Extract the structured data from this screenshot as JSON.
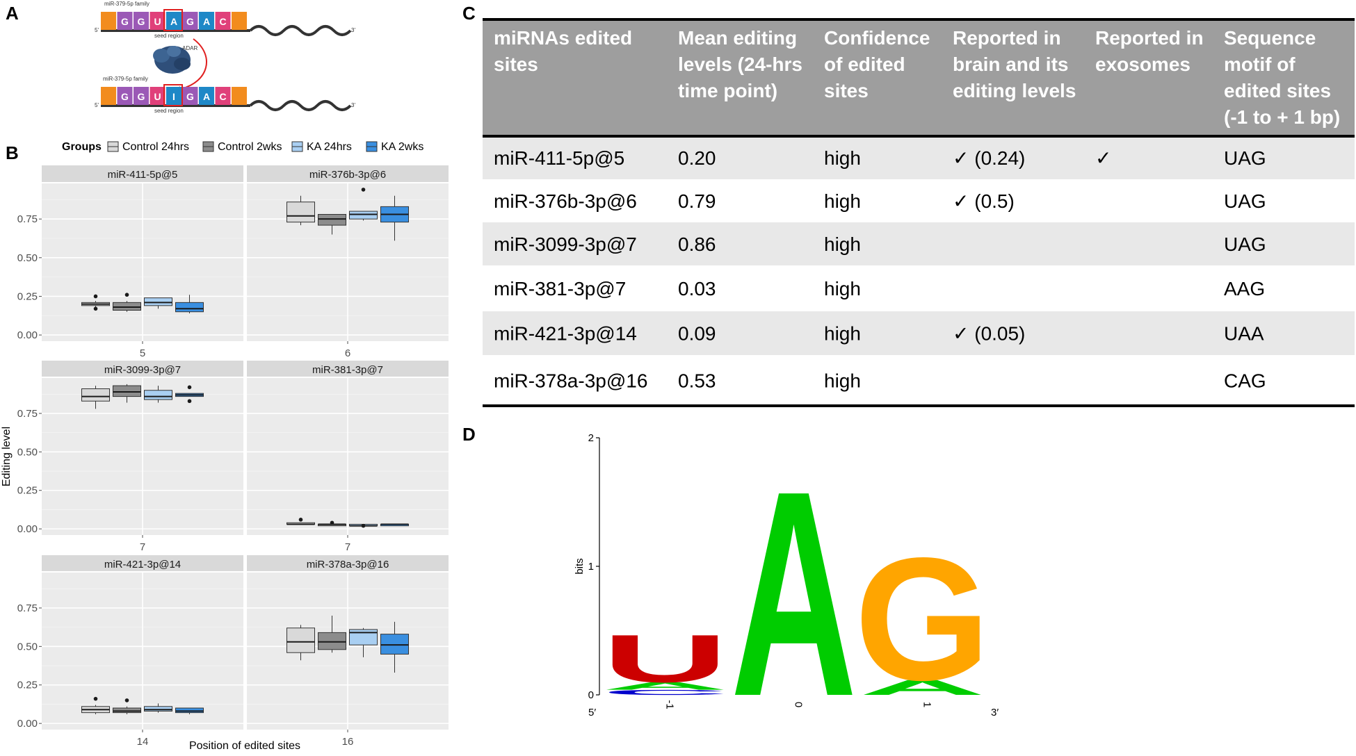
{
  "panels": {
    "A": "A",
    "B": "B",
    "C": "C",
    "D": "D"
  },
  "schematic": {
    "family_label": "miR-379-5p family",
    "adar_label": "ADAR",
    "seed_label": "seed region",
    "five_prime": "5'",
    "three_prime": "3'",
    "top_letters": [
      "",
      "G",
      "G",
      "U",
      "A",
      "G",
      "A",
      "C",
      ""
    ],
    "bottom_letters": [
      "",
      "G",
      "G",
      "U",
      "I",
      "G",
      "A",
      "C",
      ""
    ],
    "letter_colors": [
      "#f28c1e",
      "#9b59b6",
      "#9b59b6",
      "#e0407a",
      "#1e88c7",
      "#9b59b6",
      "#1e88c7",
      "#e0407a",
      "#f28c1e"
    ]
  },
  "chart_data": {
    "type": "box",
    "legend_title": "Groups",
    "legend_position": "top",
    "groups": [
      "Control 24hrs",
      "Control 2wks",
      "KA 24hrs",
      "KA 2wks"
    ],
    "group_colors": [
      "#d9d9d9",
      "#8c8c8c",
      "#a9cff2",
      "#3a8fe0"
    ],
    "xlabel": "Position of edited sites",
    "ylabel": "Editing level",
    "yticks": [
      0.0,
      0.25,
      0.5,
      0.75
    ],
    "ytick_labels": [
      "0.00",
      "0.25",
      "0.50",
      "0.75"
    ],
    "ylim": [
      -0.04,
      0.98
    ],
    "facets": [
      {
        "title": "miR-411-5p@5",
        "x_label": "5",
        "boxes": [
          {
            "min": 0.18,
            "q1": 0.19,
            "median": 0.2,
            "q3": 0.21,
            "max": 0.22,
            "outliers": [
              0.25,
              0.17
            ]
          },
          {
            "min": 0.15,
            "q1": 0.16,
            "median": 0.18,
            "q3": 0.21,
            "max": 0.22,
            "outliers": [
              0.26
            ]
          },
          {
            "min": 0.17,
            "q1": 0.19,
            "median": 0.21,
            "q3": 0.24,
            "max": 0.24,
            "outliers": []
          },
          {
            "min": 0.14,
            "q1": 0.15,
            "median": 0.17,
            "q3": 0.21,
            "max": 0.26,
            "outliers": []
          }
        ]
      },
      {
        "title": "miR-376b-3p@6",
        "x_label": "6",
        "boxes": [
          {
            "min": 0.71,
            "q1": 0.73,
            "median": 0.77,
            "q3": 0.86,
            "max": 0.9,
            "outliers": []
          },
          {
            "min": 0.65,
            "q1": 0.71,
            "median": 0.75,
            "q3": 0.78,
            "max": 0.78,
            "outliers": []
          },
          {
            "min": 0.74,
            "q1": 0.75,
            "median": 0.78,
            "q3": 0.8,
            "max": 0.8,
            "outliers": [
              0.94
            ]
          },
          {
            "min": 0.61,
            "q1": 0.73,
            "median": 0.78,
            "q3": 0.83,
            "max": 0.9,
            "outliers": []
          }
        ]
      },
      {
        "title": "miR-3099-3p@7",
        "x_label": "7",
        "boxes": [
          {
            "min": 0.78,
            "q1": 0.83,
            "median": 0.86,
            "q3": 0.91,
            "max": 0.93,
            "outliers": []
          },
          {
            "min": 0.82,
            "q1": 0.86,
            "median": 0.89,
            "q3": 0.93,
            "max": 0.94,
            "outliers": []
          },
          {
            "min": 0.82,
            "q1": 0.84,
            "median": 0.86,
            "q3": 0.9,
            "max": 0.93,
            "outliers": []
          },
          {
            "min": 0.86,
            "q1": 0.86,
            "median": 0.87,
            "q3": 0.88,
            "max": 0.88,
            "outliers": [
              0.92,
              0.83
            ]
          }
        ]
      },
      {
        "title": "miR-381-3p@7",
        "x_label": "7",
        "boxes": [
          {
            "min": 0.03,
            "q1": 0.03,
            "median": 0.03,
            "q3": 0.04,
            "max": 0.04,
            "outliers": [
              0.06
            ]
          },
          {
            "min": 0.02,
            "q1": 0.02,
            "median": 0.03,
            "q3": 0.03,
            "max": 0.03,
            "outliers": [
              0.04
            ]
          },
          {
            "min": 0.02,
            "q1": 0.02,
            "median": 0.02,
            "q3": 0.03,
            "max": 0.03,
            "outliers": [
              0.02
            ]
          },
          {
            "min": 0.02,
            "q1": 0.02,
            "median": 0.03,
            "q3": 0.03,
            "max": 0.03,
            "outliers": []
          }
        ]
      },
      {
        "title": "miR-421-3p@14",
        "x_label": "14",
        "boxes": [
          {
            "min": 0.06,
            "q1": 0.07,
            "median": 0.09,
            "q3": 0.11,
            "max": 0.12,
            "outliers": [
              0.16
            ]
          },
          {
            "min": 0.06,
            "q1": 0.07,
            "median": 0.08,
            "q3": 0.1,
            "max": 0.11,
            "outliers": [
              0.15
            ]
          },
          {
            "min": 0.07,
            "q1": 0.08,
            "median": 0.09,
            "q3": 0.11,
            "max": 0.13,
            "outliers": []
          },
          {
            "min": 0.06,
            "q1": 0.07,
            "median": 0.08,
            "q3": 0.1,
            "max": 0.1,
            "outliers": []
          }
        ]
      },
      {
        "title": "miR-378a-3p@16",
        "x_label": "16",
        "boxes": [
          {
            "min": 0.41,
            "q1": 0.46,
            "median": 0.53,
            "q3": 0.62,
            "max": 0.64,
            "outliers": []
          },
          {
            "min": 0.46,
            "q1": 0.48,
            "median": 0.53,
            "q3": 0.59,
            "max": 0.7,
            "outliers": []
          },
          {
            "min": 0.43,
            "q1": 0.51,
            "median": 0.59,
            "q3": 0.61,
            "max": 0.62,
            "outliers": []
          },
          {
            "min": 0.33,
            "q1": 0.45,
            "median": 0.51,
            "q3": 0.58,
            "max": 0.66,
            "outliers": []
          }
        ]
      }
    ]
  },
  "table": {
    "headers": [
      [
        "miRNAs edited",
        "sites"
      ],
      [
        "Mean editing",
        "levels (24-hrs",
        "time point)"
      ],
      [
        "Confidence",
        "of edited",
        "sites"
      ],
      [
        "Reported in",
        "brain and its",
        "editing levels"
      ],
      [
        "Reported in",
        "exosomes"
      ],
      [
        "Sequence",
        "motif of",
        "edited sites",
        "(-1 to + 1 bp)"
      ]
    ],
    "rows": [
      [
        "miR-411-5p@5",
        "0.20",
        "high",
        "✓ (0.24)",
        "✓",
        "UAG"
      ],
      [
        "miR-376b-3p@6",
        "0.79",
        "high",
        "✓ (0.5)",
        "",
        "UAG"
      ],
      [
        "miR-3099-3p@7",
        "0.86",
        "high",
        "",
        "",
        "UAG"
      ],
      [
        "miR-381-3p@7",
        "0.03",
        "high",
        "",
        "",
        "AAG"
      ],
      [
        "miR-421-3p@14",
        "0.09",
        "high",
        "✓ (0.05)",
        "",
        "UAA"
      ],
      [
        "miR-378a-3p@16",
        "0.53",
        "high",
        "",
        "",
        "CAG"
      ]
    ]
  },
  "logo": {
    "ylabel": "bits",
    "yticks": [
      "0",
      "1",
      "2"
    ],
    "ymax": 2,
    "xticks": [
      "-1",
      "0",
      "1"
    ],
    "five_prime": "5′",
    "three_prime": "3′",
    "positions": [
      {
        "letters": [
          {
            "l": "C",
            "bits": 0.04,
            "color": "#0000cc"
          },
          {
            "l": "A",
            "bits": 0.06,
            "color": "#00cc00"
          },
          {
            "l": "U",
            "bits": 0.38,
            "color": "#cc0000"
          }
        ]
      },
      {
        "letters": [
          {
            "l": "A",
            "bits": 1.64,
            "color": "#00cc00"
          }
        ]
      },
      {
        "letters": [
          {
            "l": "A",
            "bits": 0.12,
            "color": "#00cc00"
          },
          {
            "l": "G",
            "bits": 0.98,
            "color": "#ffa500"
          }
        ]
      }
    ]
  }
}
